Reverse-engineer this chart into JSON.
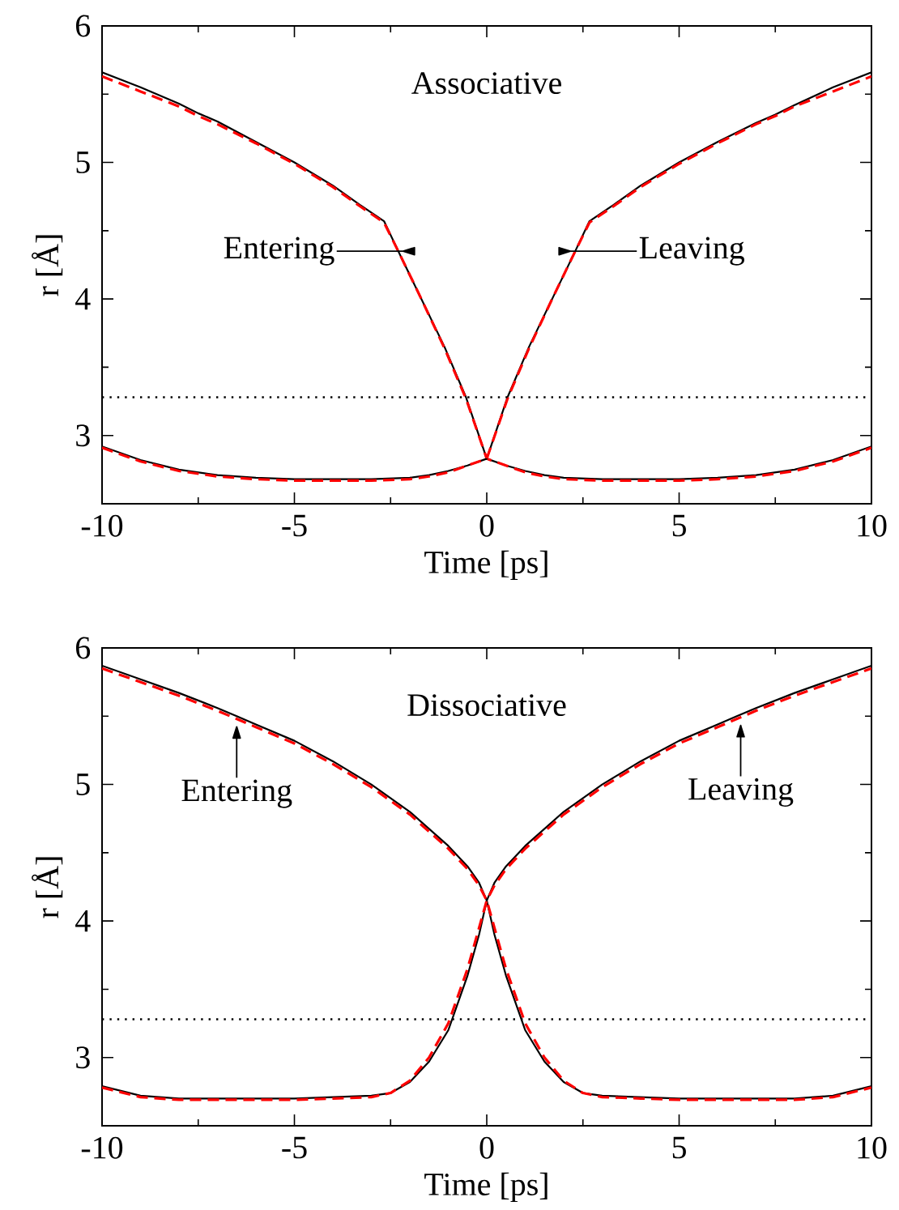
{
  "chart_data": [
    {
      "type": "line",
      "title": "Associative",
      "xlabel": "Time [ps]",
      "ylabel": "r [Å]",
      "xlim": [
        -10,
        10
      ],
      "ylim": [
        2.5,
        6
      ],
      "xticks": [
        -10,
        -5,
        0,
        5,
        10
      ],
      "yticks": [
        3,
        4,
        5,
        6
      ],
      "grid": false,
      "marker": "none",
      "series": [
        {
          "color": "#000000",
          "line_style": "solid",
          "x": [
            -10,
            -9,
            -8,
            -7.5,
            -7,
            -6,
            -5,
            -4,
            -3.3,
            -2.67,
            -2.3,
            -1.7,
            -1.1,
            -0.54,
            0,
            0.5,
            1,
            1.5,
            2,
            3,
            4,
            5,
            6,
            7,
            8,
            9,
            10
          ],
          "values": [
            5.66,
            5.55,
            5.43,
            5.36,
            5.3,
            5.15,
            5.0,
            4.83,
            4.69,
            4.57,
            4.35,
            4.0,
            3.65,
            3.28,
            2.83,
            2.78,
            2.74,
            2.71,
            2.69,
            2.68,
            2.68,
            2.68,
            2.69,
            2.71,
            2.75,
            2.82,
            2.92
          ]
        },
        {
          "color": "#ff0000",
          "line_style": "dashed",
          "x": [
            -10,
            -9,
            -8,
            -7.5,
            -7,
            -6,
            -5,
            -4,
            -3.3,
            -2.67,
            -2.3,
            -1.7,
            -1.1,
            -0.54,
            0,
            0.5,
            1,
            1.5,
            2,
            3,
            4,
            5,
            6,
            7,
            8,
            9,
            10
          ],
          "values": [
            5.63,
            5.52,
            5.41,
            5.34,
            5.28,
            5.14,
            4.99,
            4.82,
            4.68,
            4.56,
            4.35,
            4.0,
            3.64,
            3.27,
            2.83,
            2.78,
            2.73,
            2.7,
            2.68,
            2.67,
            2.67,
            2.67,
            2.68,
            2.7,
            2.74,
            2.81,
            2.91
          ]
        },
        {
          "color": "#000000",
          "line_style": "solid",
          "x": [
            -10,
            -9,
            -8,
            -7,
            -6,
            -5,
            -4,
            -3,
            -2,
            -1.5,
            -1,
            -0.5,
            0,
            0.54,
            1.1,
            1.7,
            2.3,
            2.67,
            3.3,
            4,
            5,
            6,
            7,
            7.5,
            8,
            9,
            10
          ],
          "values": [
            2.92,
            2.82,
            2.75,
            2.71,
            2.69,
            2.68,
            2.68,
            2.68,
            2.69,
            2.71,
            2.74,
            2.78,
            2.83,
            3.28,
            3.65,
            4.0,
            4.35,
            4.57,
            4.69,
            4.83,
            5.0,
            5.15,
            5.29,
            5.35,
            5.42,
            5.55,
            5.66
          ]
        },
        {
          "color": "#ff0000",
          "line_style": "dashed",
          "x": [
            -10,
            -9,
            -8,
            -7,
            -6,
            -5,
            -4,
            -3,
            -2,
            -1.5,
            -1,
            -0.5,
            0,
            0.54,
            1.1,
            1.7,
            2.3,
            2.67,
            3.3,
            4,
            5,
            6,
            7,
            7.5,
            8,
            9,
            10
          ],
          "values": [
            2.91,
            2.81,
            2.74,
            2.7,
            2.68,
            2.67,
            2.67,
            2.67,
            2.68,
            2.7,
            2.73,
            2.78,
            2.83,
            3.27,
            3.64,
            4.0,
            4.35,
            4.56,
            4.68,
            4.82,
            4.99,
            5.14,
            5.28,
            5.34,
            5.41,
            5.52,
            5.63
          ]
        }
      ],
      "ref_lines": [
        {
          "axis": "y",
          "value": 3.28,
          "line_style": "dotted",
          "color": "#000000"
        }
      ],
      "annotations": [
        {
          "text": "Entering",
          "x": -2.3,
          "y": 4.35
        },
        {
          "text": "Leaving",
          "x": 2.3,
          "y": 4.35
        }
      ]
    },
    {
      "type": "line",
      "title": "Dissociative",
      "xlabel": "Time [ps]",
      "ylabel": "r [Å]",
      "xlim": [
        -10,
        10
      ],
      "ylim": [
        2.5,
        6
      ],
      "xticks": [
        -10,
        -5,
        0,
        5,
        10
      ],
      "yticks": [
        3,
        4,
        5,
        6
      ],
      "grid": false,
      "marker": "none",
      "series": [
        {
          "color": "#000000",
          "line_style": "solid",
          "x": [
            -10,
            -9,
            -8,
            -7,
            -6.5,
            -6,
            -5,
            -4,
            -3,
            -2,
            -1,
            -0.5,
            -0.2,
            0,
            0.2,
            0.5,
            1,
            1.5,
            2,
            2.5,
            3,
            4,
            5,
            6,
            7,
            8,
            9,
            10
          ],
          "values": [
            5.87,
            5.77,
            5.67,
            5.56,
            5.5,
            5.44,
            5.32,
            5.17,
            5.0,
            4.8,
            4.55,
            4.4,
            4.28,
            4.15,
            3.9,
            3.6,
            3.2,
            2.97,
            2.82,
            2.74,
            2.72,
            2.71,
            2.7,
            2.7,
            2.7,
            2.7,
            2.72,
            2.79
          ]
        },
        {
          "color": "#ff0000",
          "line_style": "dashed",
          "x": [
            -10,
            -9,
            -8,
            -7,
            -6.5,
            -6,
            -5,
            -4,
            -3,
            -2,
            -1,
            -0.5,
            -0.2,
            0,
            0.2,
            0.5,
            1,
            1.5,
            2,
            2.5,
            3,
            4,
            5,
            6,
            7,
            8,
            9,
            10
          ],
          "values": [
            5.85,
            5.75,
            5.65,
            5.54,
            5.48,
            5.42,
            5.3,
            5.15,
            4.98,
            4.78,
            4.53,
            4.38,
            4.26,
            4.15,
            3.95,
            3.65,
            3.25,
            3.0,
            2.83,
            2.74,
            2.71,
            2.7,
            2.69,
            2.69,
            2.69,
            2.69,
            2.71,
            2.78
          ]
        },
        {
          "color": "#000000",
          "line_style": "solid",
          "x": [
            -10,
            -9,
            -8,
            -7,
            -6,
            -5,
            -4,
            -3,
            -2.5,
            -2,
            -1.5,
            -1,
            -0.5,
            -0.2,
            0,
            0.2,
            0.5,
            1,
            2,
            3,
            4,
            5,
            6,
            6.5,
            7,
            8,
            9,
            10
          ],
          "values": [
            2.79,
            2.72,
            2.7,
            2.7,
            2.7,
            2.7,
            2.71,
            2.72,
            2.74,
            2.82,
            2.97,
            3.2,
            3.6,
            3.9,
            4.15,
            4.28,
            4.4,
            4.55,
            4.8,
            5.0,
            5.17,
            5.32,
            5.44,
            5.5,
            5.56,
            5.67,
            5.77,
            5.87
          ]
        },
        {
          "color": "#ff0000",
          "line_style": "dashed",
          "x": [
            -10,
            -9,
            -8,
            -7,
            -6,
            -5,
            -4,
            -3,
            -2.5,
            -2,
            -1.5,
            -1,
            -0.5,
            -0.2,
            0,
            0.2,
            0.5,
            1,
            2,
            3,
            4,
            5,
            6,
            6.5,
            7,
            8,
            9,
            10
          ],
          "values": [
            2.78,
            2.71,
            2.69,
            2.69,
            2.69,
            2.69,
            2.7,
            2.71,
            2.74,
            2.83,
            3.0,
            3.25,
            3.65,
            3.95,
            4.15,
            4.26,
            4.38,
            4.53,
            4.78,
            4.98,
            5.15,
            5.3,
            5.42,
            5.48,
            5.54,
            5.65,
            5.75,
            5.85
          ]
        }
      ],
      "ref_lines": [
        {
          "axis": "y",
          "value": 3.28,
          "line_style": "dotted",
          "color": "#000000"
        }
      ],
      "annotations": [
        {
          "text": "Entering",
          "x": -6.5,
          "y": 5.47
        },
        {
          "text": "Leaving",
          "x": 6.6,
          "y": 5.48
        }
      ]
    }
  ]
}
